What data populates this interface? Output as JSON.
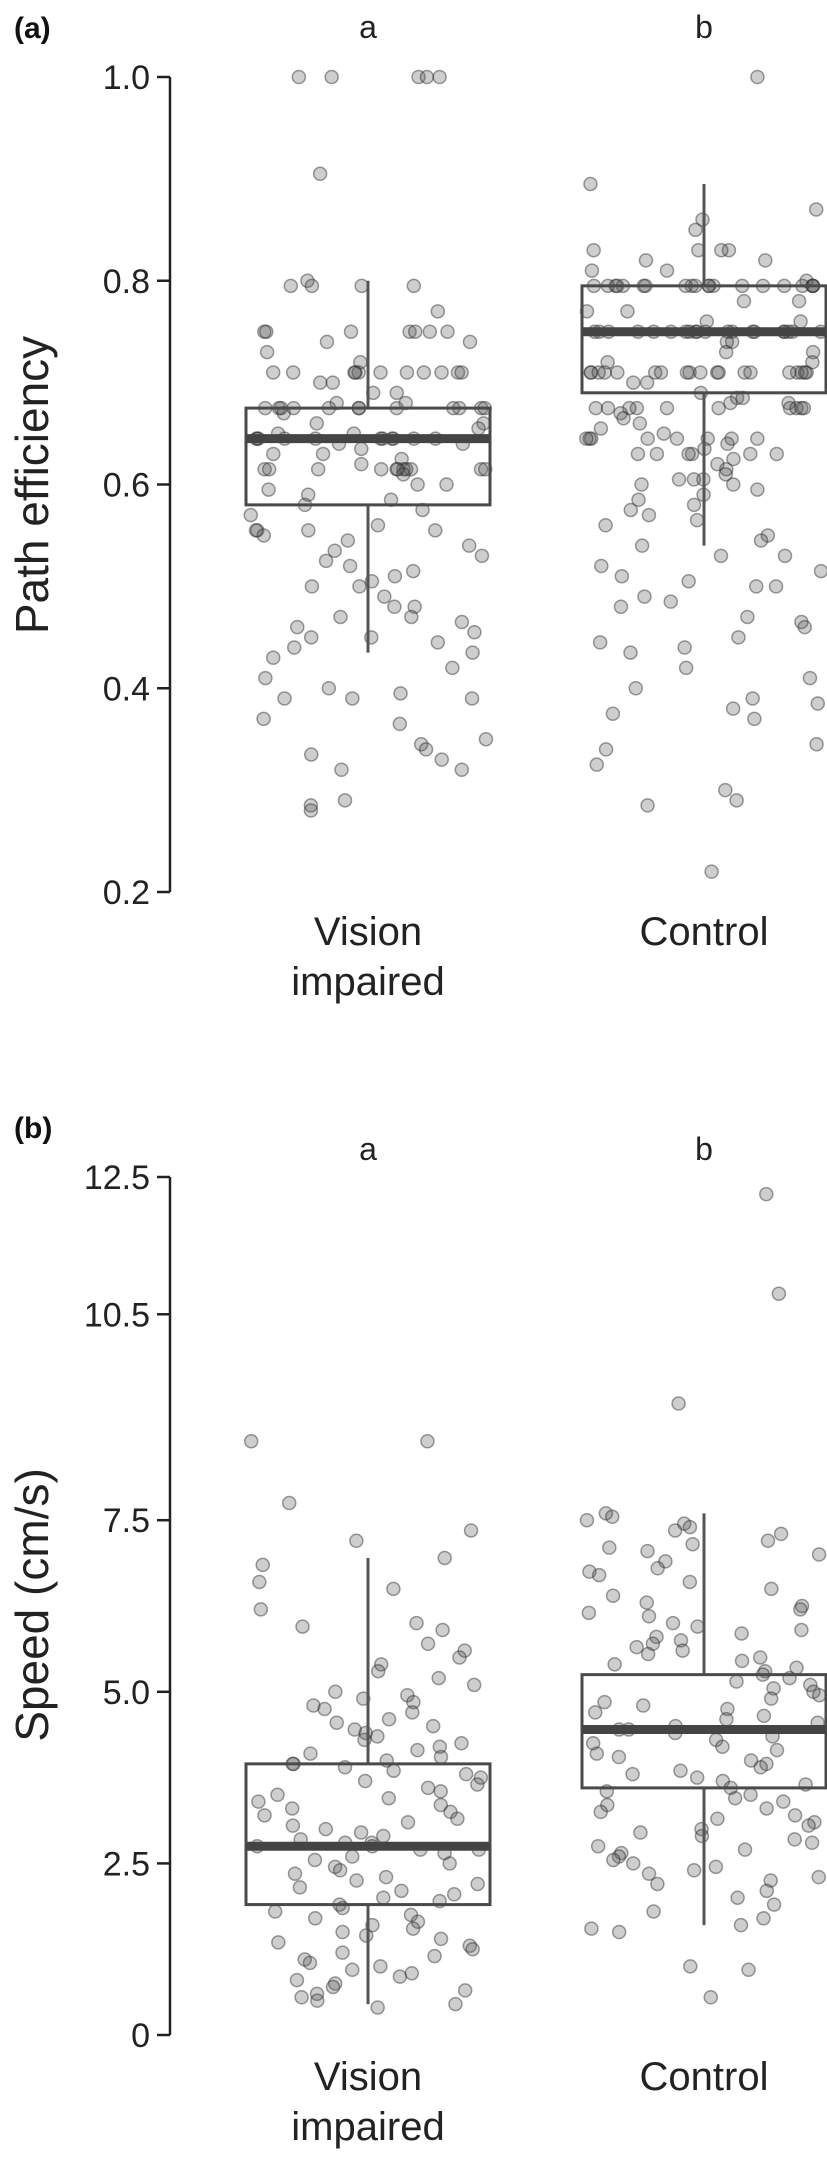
{
  "chart_data": [
    {
      "type": "box",
      "panel_label": "(a)",
      "ylabel": "Path efficiency",
      "ylim": [
        0.2,
        1.0
      ],
      "yticks": [
        0.2,
        0.4,
        0.6,
        0.8,
        1.0
      ],
      "ytick_labels": [
        "0.2",
        "0.4",
        "0.6",
        "0.8",
        "1.0"
      ],
      "categories": [
        "Vision\nimpaired",
        "Control"
      ],
      "significance_letters": [
        "a",
        "b"
      ],
      "grid": false,
      "boxes": [
        {
          "q1": 0.58,
          "median": 0.645,
          "q3": 0.675,
          "whisker_low": 0.435,
          "whisker_high": 0.8
        },
        {
          "q1": 0.69,
          "median": 0.75,
          "q3": 0.795,
          "whisker_low": 0.54,
          "whisker_high": 0.895
        }
      ],
      "points": [
        [
          1.0,
          1.0,
          1.0,
          1.0,
          1.0,
          0.905,
          0.8,
          0.795,
          0.795,
          0.795,
          0.795,
          0.77,
          0.75,
          0.75,
          0.75,
          0.75,
          0.75,
          0.75,
          0.75,
          0.74,
          0.74,
          0.73,
          0.72,
          0.71,
          0.71,
          0.71,
          0.71,
          0.71,
          0.71,
          0.71,
          0.71,
          0.71,
          0.71,
          0.71,
          0.7,
          0.7,
          0.69,
          0.69,
          0.68,
          0.68,
          0.675,
          0.675,
          0.675,
          0.675,
          0.675,
          0.675,
          0.675,
          0.675,
          0.675,
          0.675,
          0.675,
          0.675,
          0.67,
          0.66,
          0.66,
          0.655,
          0.65,
          0.65,
          0.645,
          0.645,
          0.645,
          0.645,
          0.645,
          0.645,
          0.645,
          0.645,
          0.645,
          0.645,
          0.645,
          0.64,
          0.64,
          0.635,
          0.63,
          0.63,
          0.625,
          0.62,
          0.615,
          0.615,
          0.615,
          0.615,
          0.615,
          0.615,
          0.615,
          0.615,
          0.615,
          0.615,
          0.615,
          0.61,
          0.6,
          0.6,
          0.595,
          0.59,
          0.585,
          0.58,
          0.575,
          0.57,
          0.56,
          0.555,
          0.555,
          0.555,
          0.555,
          0.55,
          0.545,
          0.54,
          0.535,
          0.53,
          0.525,
          0.52,
          0.515,
          0.51,
          0.505,
          0.5,
          0.5,
          0.49,
          0.48,
          0.48,
          0.47,
          0.47,
          0.465,
          0.46,
          0.455,
          0.45,
          0.45,
          0.445,
          0.44,
          0.435,
          0.43,
          0.42,
          0.41,
          0.4,
          0.395,
          0.39,
          0.39,
          0.39,
          0.37,
          0.365,
          0.35,
          0.345,
          0.34,
          0.335,
          0.33,
          0.32,
          0.32,
          0.29,
          0.285,
          0.28
        ],
        [
          1.0,
          0.895,
          0.87,
          0.86,
          0.85,
          0.83,
          0.83,
          0.83,
          0.83,
          0.82,
          0.82,
          0.81,
          0.81,
          0.8,
          0.795,
          0.795,
          0.795,
          0.795,
          0.795,
          0.795,
          0.795,
          0.795,
          0.795,
          0.795,
          0.795,
          0.795,
          0.795,
          0.795,
          0.795,
          0.795,
          0.795,
          0.795,
          0.795,
          0.795,
          0.78,
          0.78,
          0.77,
          0.77,
          0.76,
          0.76,
          0.75,
          0.75,
          0.75,
          0.75,
          0.75,
          0.75,
          0.75,
          0.75,
          0.75,
          0.75,
          0.75,
          0.75,
          0.75,
          0.75,
          0.75,
          0.75,
          0.75,
          0.75,
          0.75,
          0.75,
          0.74,
          0.74,
          0.73,
          0.73,
          0.72,
          0.72,
          0.71,
          0.71,
          0.71,
          0.71,
          0.71,
          0.71,
          0.71,
          0.71,
          0.71,
          0.71,
          0.71,
          0.71,
          0.71,
          0.71,
          0.71,
          0.71,
          0.71,
          0.71,
          0.71,
          0.7,
          0.7,
          0.69,
          0.685,
          0.685,
          0.68,
          0.68,
          0.675,
          0.675,
          0.675,
          0.675,
          0.675,
          0.675,
          0.675,
          0.675,
          0.675,
          0.675,
          0.67,
          0.665,
          0.66,
          0.655,
          0.65,
          0.645,
          0.645,
          0.645,
          0.645,
          0.645,
          0.645,
          0.645,
          0.645,
          0.64,
          0.635,
          0.63,
          0.63,
          0.63,
          0.63,
          0.63,
          0.63,
          0.625,
          0.62,
          0.615,
          0.61,
          0.605,
          0.605,
          0.605,
          0.6,
          0.6,
          0.595,
          0.59,
          0.585,
          0.58,
          0.575,
          0.57,
          0.565,
          0.56,
          0.55,
          0.545,
          0.54,
          0.53,
          0.53,
          0.52,
          0.515,
          0.51,
          0.505,
          0.5,
          0.5,
          0.49,
          0.485,
          0.48,
          0.47,
          0.465,
          0.46,
          0.45,
          0.445,
          0.44,
          0.435,
          0.42,
          0.41,
          0.4,
          0.39,
          0.385,
          0.38,
          0.375,
          0.37,
          0.345,
          0.34,
          0.325,
          0.3,
          0.29,
          0.285,
          0.22
        ]
      ]
    },
    {
      "type": "box",
      "panel_label": "(b)",
      "ylabel": "Speed (cm/s)",
      "ylim": [
        0,
        12.5
      ],
      "yticks": [
        0,
        2.5,
        5.0,
        7.5,
        10.5,
        12.5
      ],
      "ytick_labels": [
        "0",
        "2.5",
        "5.0",
        "7.5",
        "10.5",
        "12.5"
      ],
      "categories": [
        "Vision\nimpaired",
        "Control"
      ],
      "significance_letters": [
        "a",
        "b"
      ],
      "grid": false,
      "boxes": [
        {
          "q1": 1.9,
          "median": 2.75,
          "q3": 3.95,
          "whisker_low": 0.45,
          "whisker_high": 6.95
        },
        {
          "q1": 3.6,
          "median": 4.45,
          "q3": 5.25,
          "whisker_low": 1.6,
          "whisker_high": 7.6
        }
      ],
      "points": [
        [
          8.65,
          8.65,
          7.75,
          7.35,
          7.2,
          6.95,
          6.85,
          6.6,
          6.5,
          6.2,
          6.0,
          5.95,
          5.9,
          5.7,
          5.6,
          5.5,
          5.4,
          5.3,
          5.2,
          5.1,
          5.0,
          4.95,
          4.9,
          4.85,
          4.8,
          4.75,
          4.7,
          4.6,
          4.55,
          4.5,
          4.45,
          4.4,
          4.35,
          4.3,
          4.25,
          4.2,
          4.15,
          4.1,
          4.05,
          4.0,
          3.95,
          3.95,
          3.9,
          3.85,
          3.8,
          3.75,
          3.7,
          3.65,
          3.6,
          3.55,
          3.5,
          3.45,
          3.4,
          3.35,
          3.3,
          3.25,
          3.2,
          3.15,
          3.1,
          3.05,
          3.0,
          2.95,
          2.9,
          2.85,
          2.8,
          2.8,
          2.75,
          2.75,
          2.7,
          2.7,
          2.65,
          2.6,
          2.55,
          2.5,
          2.45,
          2.4,
          2.35,
          2.3,
          2.25,
          2.2,
          2.15,
          2.1,
          2.05,
          2.0,
          1.95,
          1.9,
          1.85,
          1.8,
          1.75,
          1.7,
          1.65,
          1.6,
          1.55,
          1.5,
          1.45,
          1.4,
          1.35,
          1.3,
          1.25,
          1.2,
          1.15,
          1.1,
          1.05,
          1.0,
          0.95,
          0.9,
          0.85,
          0.8,
          0.75,
          0.7,
          0.65,
          0.6,
          0.55,
          0.5,
          0.45,
          0.4
        ],
        [
          12.25,
          10.8,
          9.2,
          7.6,
          7.55,
          7.5,
          7.45,
          7.4,
          7.35,
          7.3,
          7.2,
          7.15,
          7.1,
          7.05,
          7.0,
          6.9,
          6.8,
          6.75,
          6.7,
          6.6,
          6.5,
          6.4,
          6.3,
          6.25,
          6.2,
          6.15,
          6.1,
          6.0,
          5.95,
          5.9,
          5.85,
          5.8,
          5.75,
          5.7,
          5.65,
          5.6,
          5.55,
          5.5,
          5.45,
          5.4,
          5.35,
          5.3,
          5.25,
          5.2,
          5.15,
          5.1,
          5.05,
          5.0,
          4.95,
          4.9,
          4.85,
          4.8,
          4.75,
          4.7,
          4.65,
          4.6,
          4.55,
          4.5,
          4.45,
          4.45,
          4.4,
          4.35,
          4.3,
          4.25,
          4.2,
          4.15,
          4.1,
          4.05,
          4.0,
          3.95,
          3.9,
          3.85,
          3.8,
          3.75,
          3.7,
          3.65,
          3.6,
          3.55,
          3.5,
          3.45,
          3.4,
          3.35,
          3.3,
          3.25,
          3.2,
          3.15,
          3.1,
          3.05,
          3.0,
          2.95,
          2.9,
          2.85,
          2.8,
          2.75,
          2.7,
          2.65,
          2.6,
          2.55,
          2.5,
          2.45,
          2.4,
          2.35,
          2.3,
          2.25,
          2.2,
          2.1,
          2.0,
          1.9,
          1.8,
          1.7,
          1.6,
          1.55,
          1.5,
          1.0,
          0.95,
          0.55
        ]
      ]
    }
  ]
}
